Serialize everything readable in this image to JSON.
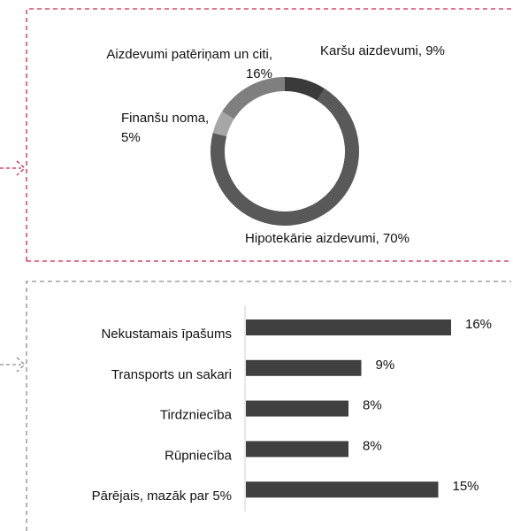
{
  "chart_data": [
    {
      "type": "donut",
      "values": [
        9,
        70,
        5,
        16
      ],
      "value_labels": [
        "Karšu aizdevumi, 9%",
        "Hipotekārie aizdevumi, 70%",
        "Finanšu noma, 5%",
        "Aizdevumi patēriņam un citi, 16%"
      ],
      "colors": [
        "#3a3a3a",
        "#595959",
        "#a6a6a6",
        "#7f7f7f"
      ]
    },
    {
      "type": "hbar",
      "categories": [
        "Nekustamais īpašums",
        "Transports un sakari",
        "Tirdzniecība",
        "Rūpniecība",
        "Pārējais, mazāk par 5%"
      ],
      "values": [
        16,
        9,
        8,
        8,
        15
      ],
      "value_labels": [
        "16%",
        "9%",
        "8%",
        "8%",
        "15%"
      ],
      "color": "#404040"
    }
  ]
}
